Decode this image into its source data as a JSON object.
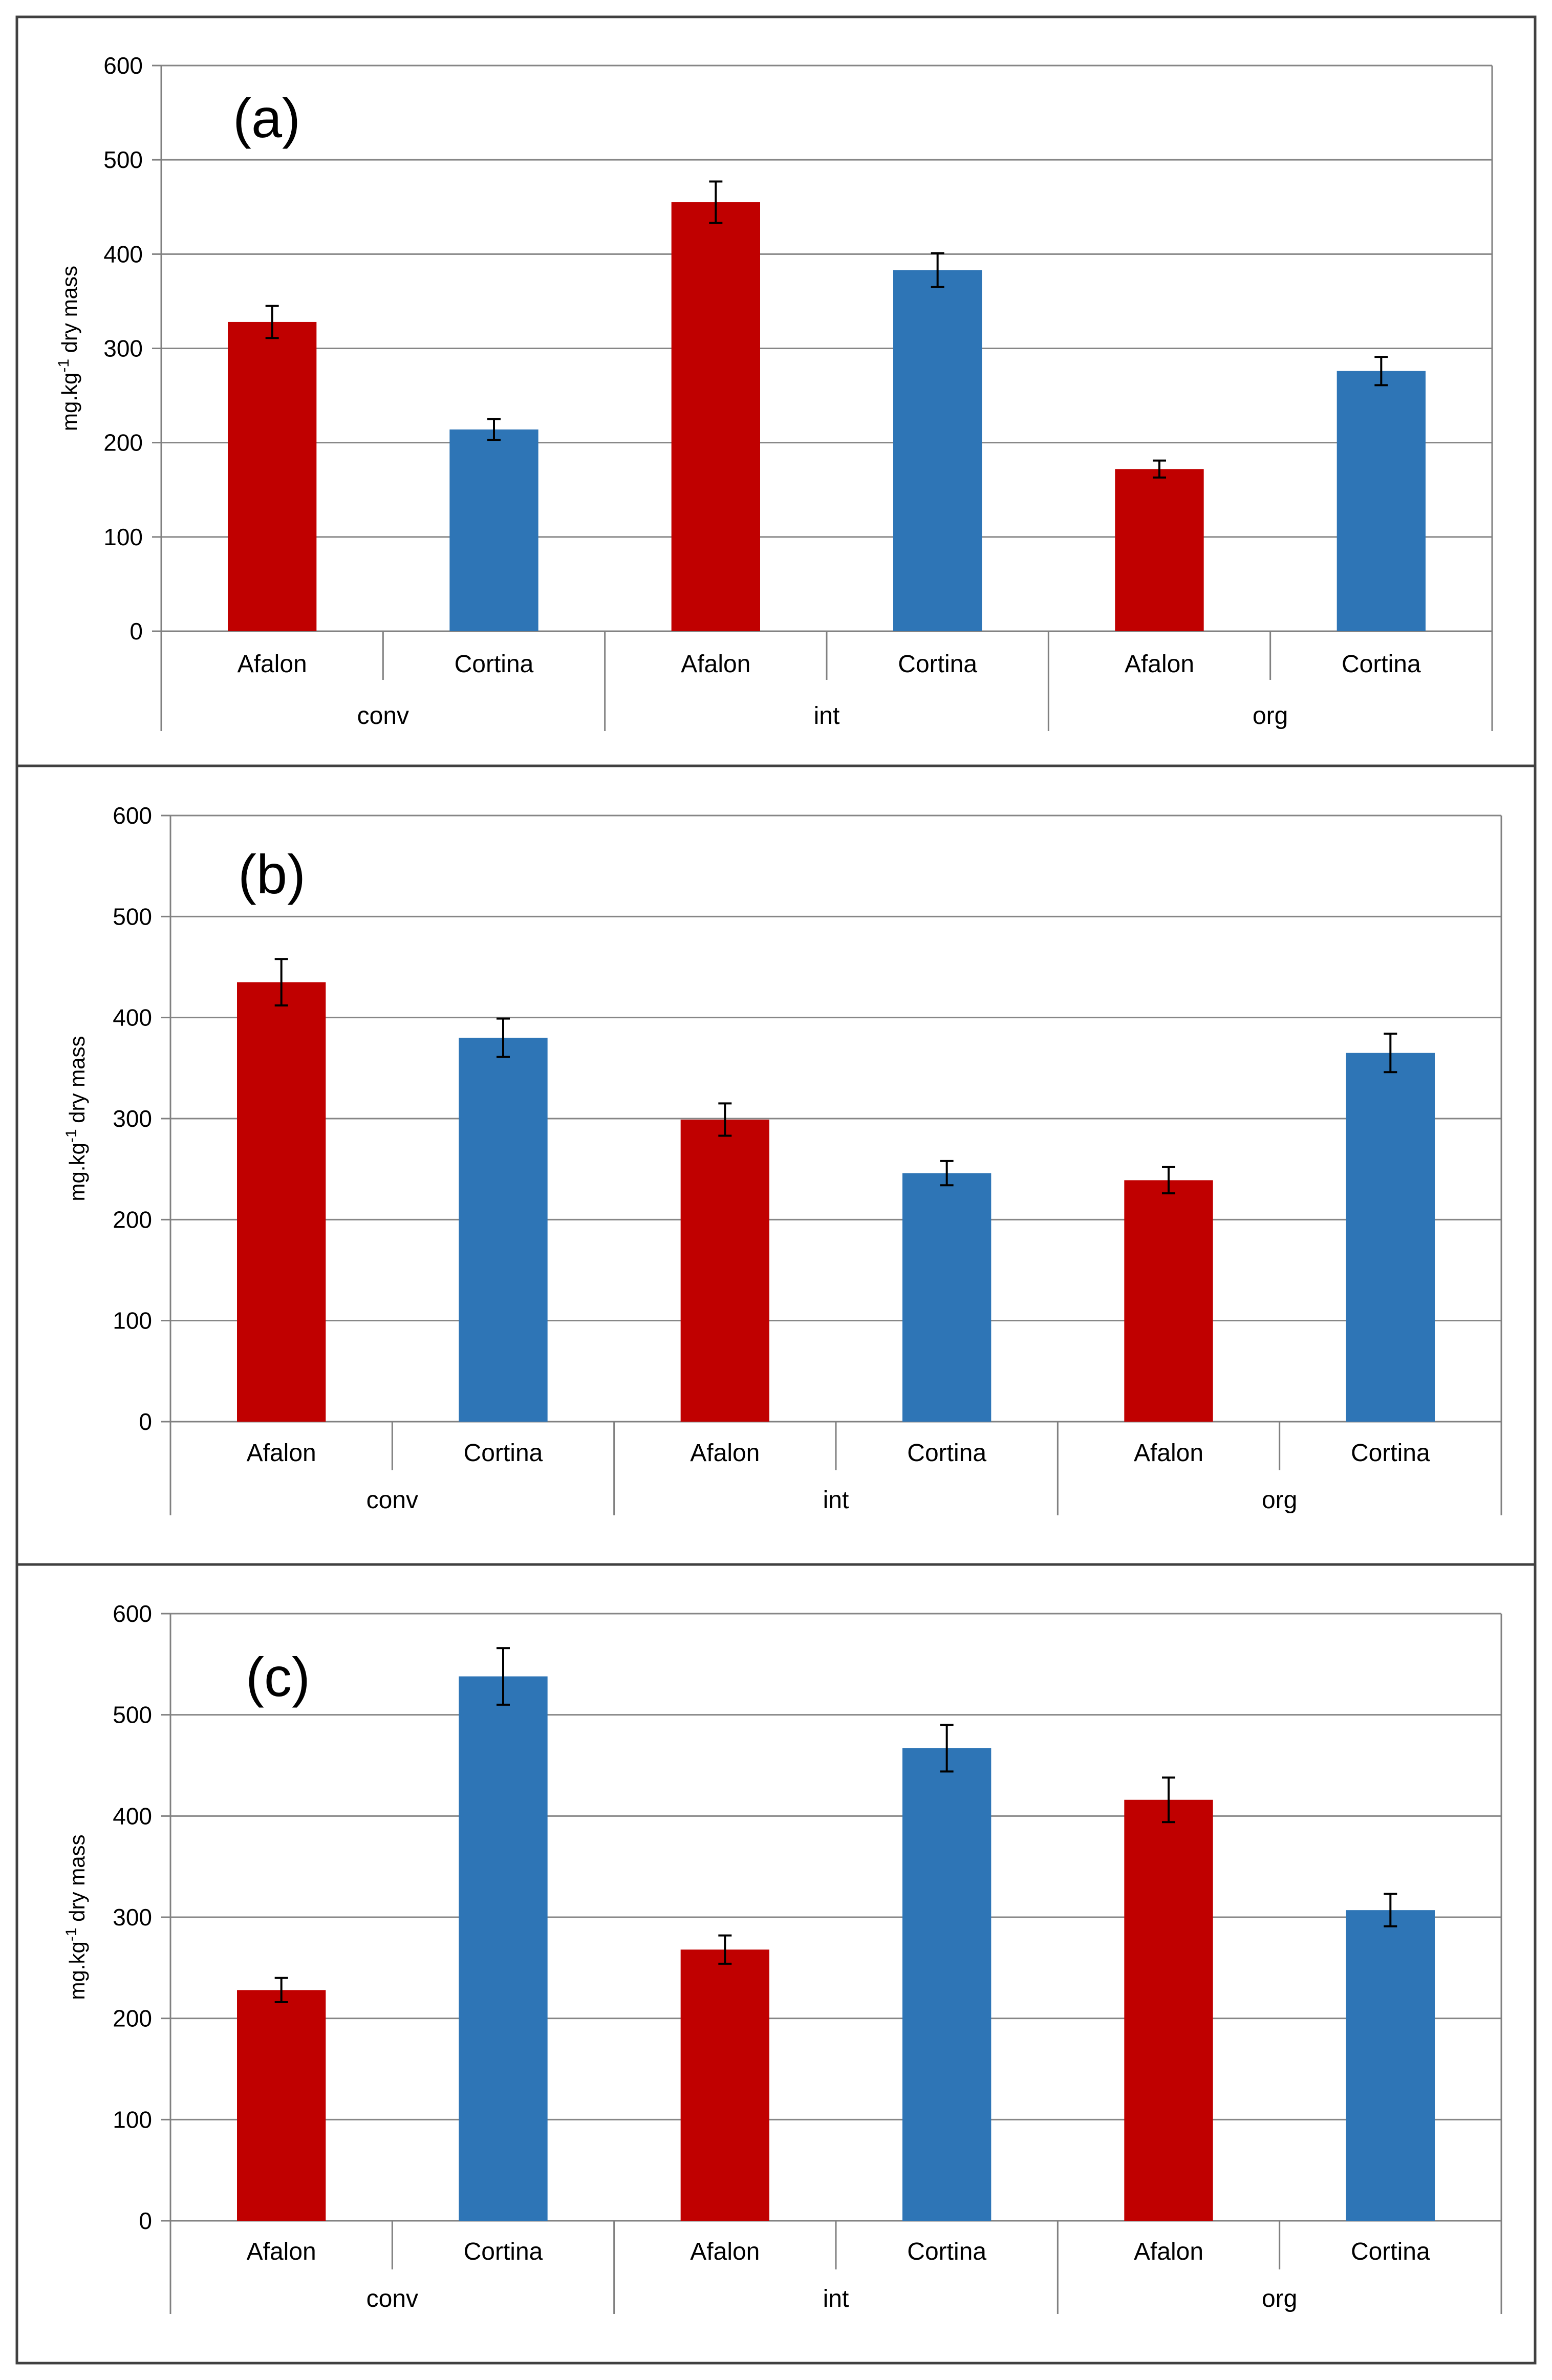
{
  "colors": {
    "afalon": "#C00000",
    "cortina": "#2E75B6",
    "grid": "#868686",
    "axis": "#808080",
    "frame": "#404040",
    "errorbar": "#000000"
  },
  "chart_data": [
    {
      "type": "bar",
      "panel_label": "(a)",
      "ylabel_prefix": "mg.kg",
      "ylabel_sup": "-1",
      "ylabel_suffix": " dry mass",
      "ylim": [
        0,
        600
      ],
      "yticks": [
        "0",
        "100",
        "200",
        "300",
        "400",
        "500",
        "600"
      ],
      "grid": true,
      "groups": [
        "conv",
        "int",
        "org"
      ],
      "categories": [
        "Afalon",
        "Cortina",
        "Afalon",
        "Cortina",
        "Afalon",
        "Cortina"
      ],
      "values": [
        328,
        214,
        455,
        383,
        172,
        276
      ],
      "errors": [
        17,
        11,
        22,
        18,
        9,
        15
      ]
    },
    {
      "type": "bar",
      "panel_label": "(b)",
      "ylabel_prefix": "mg.kg",
      "ylabel_sup": "-1",
      "ylabel_suffix": " dry mass",
      "ylim": [
        0,
        600
      ],
      "yticks": [
        "0",
        "100",
        "200",
        "300",
        "400",
        "500",
        "600"
      ],
      "grid": true,
      "groups": [
        "conv",
        "int",
        "org"
      ],
      "categories": [
        "Afalon",
        "Cortina",
        "Afalon",
        "Cortina",
        "Afalon",
        "Cortina"
      ],
      "values": [
        435,
        380,
        299,
        246,
        239,
        365
      ],
      "errors": [
        23,
        19,
        16,
        12,
        13,
        19
      ]
    },
    {
      "type": "bar",
      "panel_label": "(c)",
      "ylabel_prefix": "mg.kg",
      "ylabel_sup": "-1",
      "ylabel_suffix": " dry mass",
      "ylim": [
        0,
        600
      ],
      "yticks": [
        "0",
        "100",
        "200",
        "300",
        "400",
        "500",
        "600"
      ],
      "grid": true,
      "groups": [
        "conv",
        "int",
        "org"
      ],
      "categories": [
        "Afalon",
        "Cortina",
        "Afalon",
        "Cortina",
        "Afalon",
        "Cortina"
      ],
      "values": [
        228,
        538,
        268,
        467,
        416,
        307
      ],
      "errors": [
        12,
        28,
        14,
        23,
        22,
        16
      ]
    }
  ]
}
